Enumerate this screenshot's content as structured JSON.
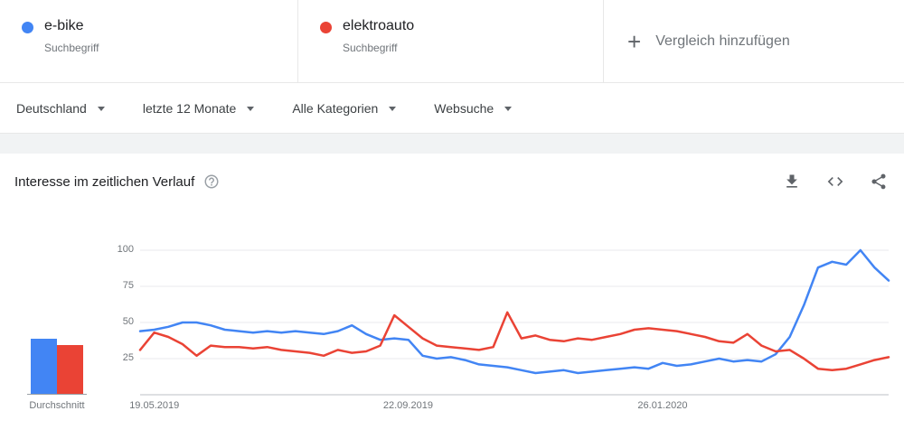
{
  "terms": [
    {
      "label": "e-bike",
      "sublabel": "Suchbegriff",
      "color": "#4285f4"
    },
    {
      "label": "elektroauto",
      "sublabel": "Suchbegriff",
      "color": "#ea4335"
    }
  ],
  "add_comparison": {
    "plus": "+",
    "label": "Vergleich hinzufügen"
  },
  "filters": [
    {
      "label": "Deutschland"
    },
    {
      "label": "letzte 12 Monate"
    },
    {
      "label": "Alle Kategorien"
    },
    {
      "label": "Websuche"
    }
  ],
  "card": {
    "title": "Interesse im zeitlichen Verlauf"
  },
  "avg": {
    "label": "Durchschnitt",
    "values": [
      {
        "name": "e-bike",
        "value": 38,
        "color": "#4285f4"
      },
      {
        "name": "elektroauto",
        "value": 34,
        "color": "#ea4335"
      }
    ]
  },
  "chart_data": {
    "type": "line",
    "title": "Interesse im zeitlichen Verlauf",
    "ylim": [
      0,
      100
    ],
    "yticks": [
      25,
      50,
      75,
      100
    ],
    "grid": true,
    "legend_position": "none",
    "xticks": [
      {
        "label": "19.05.2019",
        "pos": 0.019
      },
      {
        "label": "22.09.2019",
        "pos": 0.358
      },
      {
        "label": "26.01.2020",
        "pos": 0.698
      }
    ],
    "series": [
      {
        "name": "e-bike",
        "color": "#4285f4",
        "values": [
          44,
          45,
          47,
          50,
          50,
          48,
          45,
          44,
          43,
          44,
          43,
          44,
          43,
          42,
          44,
          48,
          42,
          38,
          39,
          38,
          27,
          25,
          26,
          24,
          21,
          20,
          19,
          17,
          15,
          16,
          17,
          15,
          16,
          17,
          18,
          19,
          18,
          22,
          20,
          21,
          23,
          25,
          23,
          24,
          23,
          28,
          40,
          62,
          88,
          92,
          90,
          100,
          88,
          79
        ]
      },
      {
        "name": "elektroauto",
        "color": "#ea4335",
        "values": [
          31,
          43,
          40,
          35,
          27,
          34,
          33,
          33,
          32,
          33,
          31,
          30,
          29,
          27,
          31,
          29,
          30,
          34,
          55,
          47,
          39,
          34,
          33,
          32,
          31,
          33,
          57,
          39,
          41,
          38,
          37,
          39,
          38,
          40,
          42,
          45,
          46,
          45,
          44,
          42,
          40,
          37,
          36,
          42,
          34,
          30,
          31,
          25,
          18,
          17,
          18,
          21,
          24,
          26
        ]
      }
    ]
  }
}
